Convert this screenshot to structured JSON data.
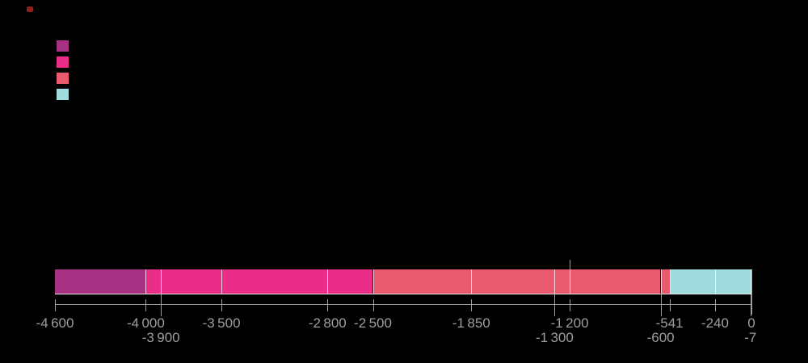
{
  "page": {
    "background_color": "#000000",
    "logo_mark_color": "#8e1f1f"
  },
  "legend": {
    "items": [
      {
        "label": "",
        "color": "#a73283"
      },
      {
        "label": "",
        "color": "#ea2e87"
      },
      {
        "label": "",
        "color": "#ea5a6f"
      },
      {
        "label": "",
        "color": "#a0dcdd"
      }
    ]
  },
  "chart_data": {
    "type": "timeline",
    "title": "",
    "xlabel": "",
    "x_axis": {
      "min": -4600,
      "max": 0
    },
    "axis_color": "#9c9c9c",
    "label_color": "#9e9e9e",
    "divider_color": "rgba(255,255,255,0.75)",
    "bar_bottom_line_color": "#ffffff",
    "grid": false,
    "legend_position": "top-left",
    "segments": [
      {
        "from": -4600,
        "to": -4000,
        "color": "#a73283"
      },
      {
        "from": -4000,
        "to": -3900,
        "color": "#ea2e87"
      },
      {
        "from": -3900,
        "to": -3500,
        "color": "#ea2e87"
      },
      {
        "from": -3500,
        "to": -2800,
        "color": "#ea2e87"
      },
      {
        "from": -2800,
        "to": -2500,
        "color": "#ea2e87"
      },
      {
        "from": -2500,
        "to": -1850,
        "color": "#ea5a6f"
      },
      {
        "from": -1850,
        "to": -1300,
        "color": "#ea5a6f"
      },
      {
        "from": -1300,
        "to": -1200,
        "color": "#ea5a6f"
      },
      {
        "from": -1200,
        "to": -600,
        "color": "#ea5a6f"
      },
      {
        "from": -600,
        "to": -541,
        "color": "#ea5a6f"
      },
      {
        "from": -541,
        "to": -240,
        "color": "#a0dcdd"
      },
      {
        "from": -240,
        "to": -7,
        "color": "#a0dcdd"
      },
      {
        "from": -7,
        "to": 0,
        "color": "#a0dcdd"
      }
    ],
    "ticks": [
      {
        "value": -4600,
        "label": "-4 600",
        "row": 1
      },
      {
        "value": -4000,
        "label": "-4 000",
        "row": 1
      },
      {
        "value": -3900,
        "label": "-3 900",
        "row": 2
      },
      {
        "value": -3500,
        "label": "-3 500",
        "row": 1
      },
      {
        "value": -2800,
        "label": "-2 800",
        "row": 1
      },
      {
        "value": -2500,
        "label": "-2 500",
        "row": 1
      },
      {
        "value": -1850,
        "label": "-1 850",
        "row": 1
      },
      {
        "value": -1300,
        "label": "-1 300",
        "row": 2
      },
      {
        "value": -1200,
        "label": "-1 200",
        "row": 1,
        "up_tick": true
      },
      {
        "value": -600,
        "label": "-600",
        "row": 2
      },
      {
        "value": -541,
        "label": "-541",
        "row": 1
      },
      {
        "value": -240,
        "label": "-240",
        "row": 1
      },
      {
        "value": -7,
        "label": "-7",
        "row": 2
      },
      {
        "value": 0,
        "label": "0",
        "row": 1,
        "edge": true
      }
    ]
  }
}
